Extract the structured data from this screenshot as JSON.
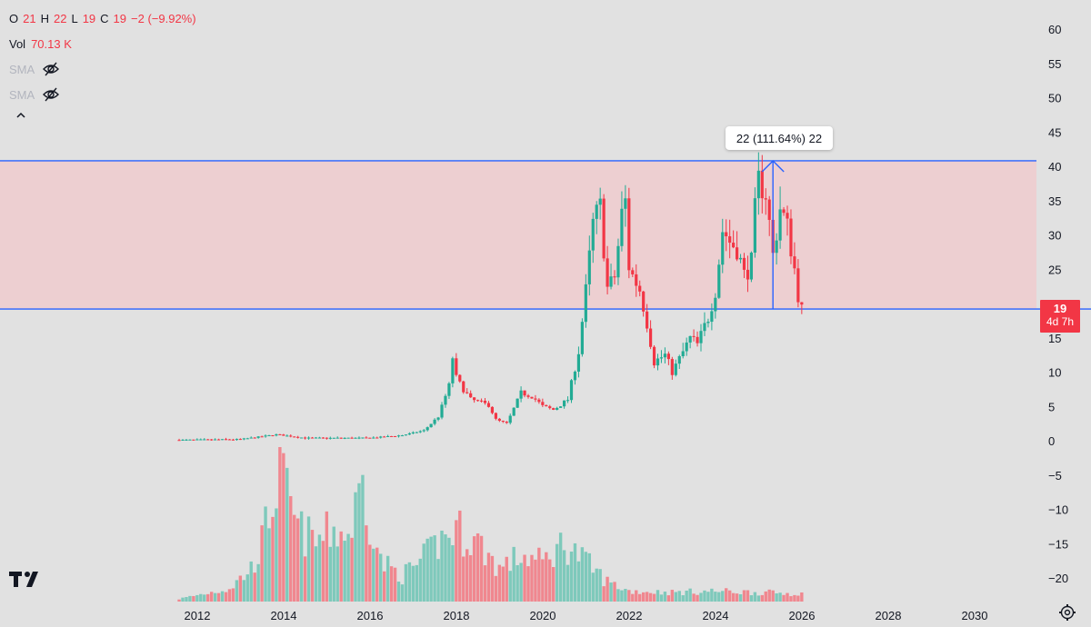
{
  "legend": {
    "o_label": "O",
    "o_value": "21",
    "h_label": "H",
    "h_value": "22",
    "l_label": "L",
    "l_value": "19",
    "c_label": "C",
    "c_value": "19",
    "change": "−2 (−9.92%)",
    "vol_label": "Vol",
    "vol_value": "70.13 K",
    "sma1": "SMA",
    "sma2": "SMA"
  },
  "badge": {
    "price": "19",
    "countdown": "4d 7h"
  },
  "measure": {
    "label": "22 (111.64%) 22"
  },
  "colors": {
    "up": "#22ab94",
    "down": "#f23645",
    "vol_up": "#7ec9bb",
    "vol_down": "#f0878f",
    "zone_fill": "#f2c5c8",
    "zone_line": "#2962ff",
    "text": "#131722"
  },
  "icons": {
    "visibility": "eye-off-icon",
    "collapse": "chevron-up-icon",
    "logo": "tradingview-logo",
    "settings": "gear-icon"
  },
  "chart_data": {
    "type": "candlestick",
    "interval": "1M",
    "y_axis_ticks": [
      60,
      55,
      50,
      45,
      40,
      35,
      30,
      25,
      20,
      15,
      10,
      5,
      0,
      -5,
      -10,
      -15,
      -20
    ],
    "x_axis_ticks": [
      "2012",
      "2014",
      "2016",
      "2018",
      "2020",
      "2022",
      "2024",
      "2026",
      "2028",
      "2030"
    ],
    "ylim": [
      -23,
      63
    ],
    "xlim": [
      2011.5,
      2031.1
    ],
    "zone": {
      "top": 40.8,
      "bottom": 19.2
    },
    "measure": {
      "from_price": 19.2,
      "to_price": 40.8,
      "x_year": 2025.33
    },
    "last_price": 19,
    "waypoints": [
      [
        2011.58,
        0.1
      ],
      [
        2013.0,
        0.2
      ],
      [
        2013.83,
        0.9
      ],
      [
        2014.5,
        0.4
      ],
      [
        2016.0,
        0.4
      ],
      [
        2016.75,
        0.8
      ],
      [
        2017.25,
        1.5
      ],
      [
        2017.58,
        3.5
      ],
      [
        2017.83,
        8.0
      ],
      [
        2017.92,
        12.5
      ],
      [
        2018.0,
        9.0
      ],
      [
        2018.33,
        6.0
      ],
      [
        2018.75,
        5.2
      ],
      [
        2018.92,
        3.0
      ],
      [
        2019.17,
        2.5
      ],
      [
        2019.5,
        7.0
      ],
      [
        2019.75,
        6.5
      ],
      [
        2020.0,
        5.0
      ],
      [
        2020.25,
        4.5
      ],
      [
        2020.58,
        6.0
      ],
      [
        2020.83,
        13.0
      ],
      [
        2021.0,
        22.0
      ],
      [
        2021.17,
        32.0
      ],
      [
        2021.33,
        34.0
      ],
      [
        2021.5,
        22.0
      ],
      [
        2021.67,
        24.0
      ],
      [
        2021.83,
        33.0
      ],
      [
        2021.92,
        35.0
      ],
      [
        2022.0,
        25.0
      ],
      [
        2022.25,
        22.0
      ],
      [
        2022.42,
        17.0
      ],
      [
        2022.58,
        11.5
      ],
      [
        2022.83,
        12.5
      ],
      [
        2023.0,
        10.0
      ],
      [
        2023.17,
        12.0
      ],
      [
        2023.42,
        15.0
      ],
      [
        2023.58,
        14.0
      ],
      [
        2023.83,
        18.0
      ],
      [
        2024.0,
        22.0
      ],
      [
        2024.17,
        31.0
      ],
      [
        2024.33,
        29.0
      ],
      [
        2024.5,
        28.0
      ],
      [
        2024.67,
        24.0
      ],
      [
        2024.83,
        26.0
      ],
      [
        2024.92,
        34.0
      ],
      [
        2025.0,
        38.0
      ],
      [
        2025.17,
        36.0
      ],
      [
        2025.33,
        27.0
      ],
      [
        2025.5,
        34.0
      ],
      [
        2025.67,
        31.0
      ],
      [
        2025.83,
        25.0
      ],
      [
        2025.92,
        21.0
      ],
      [
        2026.0,
        19.0
      ]
    ],
    "volume_waypoints": [
      [
        2011.58,
        0.02
      ],
      [
        2012.75,
        0.1
      ],
      [
        2013.25,
        0.25
      ],
      [
        2013.5,
        0.45
      ],
      [
        2013.75,
        0.8
      ],
      [
        2013.92,
        0.95
      ],
      [
        2014.33,
        0.55
      ],
      [
        2014.75,
        0.45
      ],
      [
        2015.17,
        0.55
      ],
      [
        2015.5,
        0.5
      ],
      [
        2015.83,
        0.9
      ],
      [
        2016.25,
        0.3
      ],
      [
        2016.75,
        0.2
      ],
      [
        2017.17,
        0.3
      ],
      [
        2017.58,
        0.45
      ],
      [
        2018.0,
        0.55
      ],
      [
        2018.5,
        0.45
      ],
      [
        2019.0,
        0.25
      ],
      [
        2019.5,
        0.35
      ],
      [
        2020.0,
        0.3
      ],
      [
        2020.5,
        0.45
      ],
      [
        2021.0,
        0.3
      ],
      [
        2021.5,
        0.15
      ],
      [
        2022.0,
        0.08
      ],
      [
        2023.0,
        0.07
      ],
      [
        2024.0,
        0.08
      ],
      [
        2025.0,
        0.07
      ],
      [
        2026.0,
        0.06
      ]
    ]
  }
}
